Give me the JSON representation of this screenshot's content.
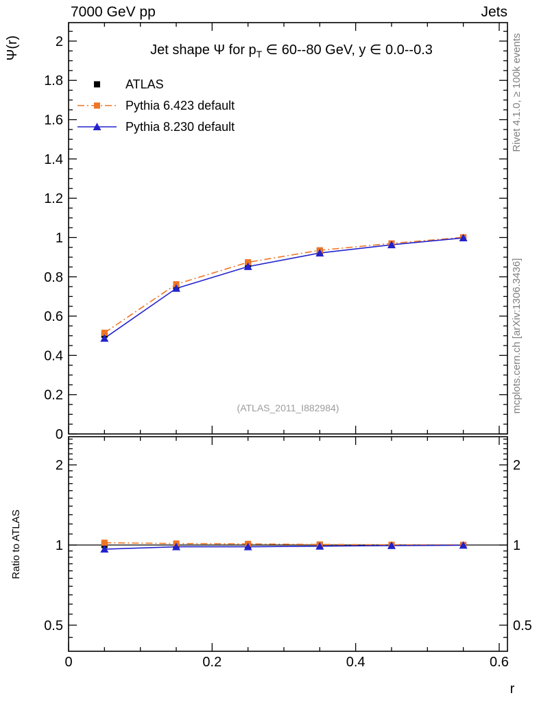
{
  "header": {
    "left": "7000 GeV pp",
    "right": "Jets"
  },
  "title_parts": {
    "pre": "Jet shape Ψ for p",
    "sub": "T",
    "post": " ∈ 60--80 GeV, y ∈ 0.0--0.3"
  },
  "watermark": "(ATLAS_2011_I882984)",
  "side_texts": {
    "top_right": "Rivet 4.1.0, ≥ 100k events",
    "bottom_right": "mcplots.cern.ch [arXiv:1306.3436]"
  },
  "colors": {
    "atlas": "#000000",
    "pythia6": "#ee7525",
    "pythia8": "#2222cc",
    "frame": "#000000",
    "watermark_gray": "#9c9c9c",
    "side_gray": "#808080"
  },
  "chart_data": {
    "type": "line",
    "title": "Jet shape Ψ for p_T ∈ 60--80 GeV, y ∈ 0.0--0.3",
    "panels": [
      "main",
      "ratio"
    ],
    "legend_position": "top-left-inside",
    "grid": false,
    "axes": {
      "x": {
        "label": "r",
        "lim": [
          0,
          0.6115
        ],
        "major_ticks": [
          0,
          0.2,
          0.4,
          0.6
        ],
        "tick_labels": [
          "0",
          "0.2",
          "0.4",
          "0.6"
        ],
        "minor_step": 0.05
      },
      "y_main": {
        "label": "Ψ(r)",
        "lim": [
          0,
          2.094
        ],
        "major_ticks": [
          0,
          0.2,
          0.4,
          0.6,
          0.8,
          1,
          1.2,
          1.4,
          1.6,
          1.8,
          2
        ],
        "tick_labels": [
          "0",
          "0.2",
          "0.4",
          "0.6",
          "0.8",
          "1",
          "1.2",
          "1.4",
          "1.6",
          "1.8",
          "2"
        ],
        "minor_step": 0.05
      },
      "y_ratio": {
        "label": "Ratio to ATLAS",
        "scale": "log",
        "lim": [
          0.399,
          2.552
        ],
        "major_ticks": [
          0.5,
          1,
          2
        ],
        "tick_labels": [
          "0.5",
          "1",
          "2"
        ],
        "minor_ticks": [
          0.45,
          0.55,
          0.6,
          0.65,
          0.7,
          0.75,
          0.8,
          0.85,
          0.9,
          0.95,
          1.1,
          1.2,
          1.3,
          1.4,
          1.5,
          1.6,
          1.7,
          1.8,
          1.9,
          2.1,
          2.2,
          2.3,
          2.4,
          2.5
        ]
      }
    },
    "x": [
      0.05,
      0.15,
      0.25,
      0.35,
      0.45,
      0.55
    ],
    "series": [
      {
        "name": "ATLAS",
        "role": "data",
        "marker": "square",
        "line": "none",
        "color": "#000000",
        "values": [
          0.505,
          0.752,
          0.865,
          0.93,
          0.968,
          1.0
        ],
        "ratio": [
          1,
          1,
          1,
          1,
          1,
          1
        ]
      },
      {
        "name": "Pythia 6.423 default",
        "role": "mc",
        "marker": "square",
        "line": "dashdot",
        "color": "#ee7525",
        "values": [
          0.515,
          0.762,
          0.874,
          0.935,
          0.97,
          1.001
        ],
        "ratio": [
          1.02,
          1.013,
          1.01,
          1.005,
          1.002,
          1.001
        ]
      },
      {
        "name": "Pythia 8.230 default",
        "role": "mc",
        "marker": "triangle",
        "line": "solid",
        "color": "#2222cc",
        "values": [
          0.487,
          0.741,
          0.852,
          0.921,
          0.963,
          0.998
        ],
        "ratio": [
          0.965,
          0.985,
          0.985,
          0.99,
          0.995,
          0.998
        ]
      }
    ]
  }
}
